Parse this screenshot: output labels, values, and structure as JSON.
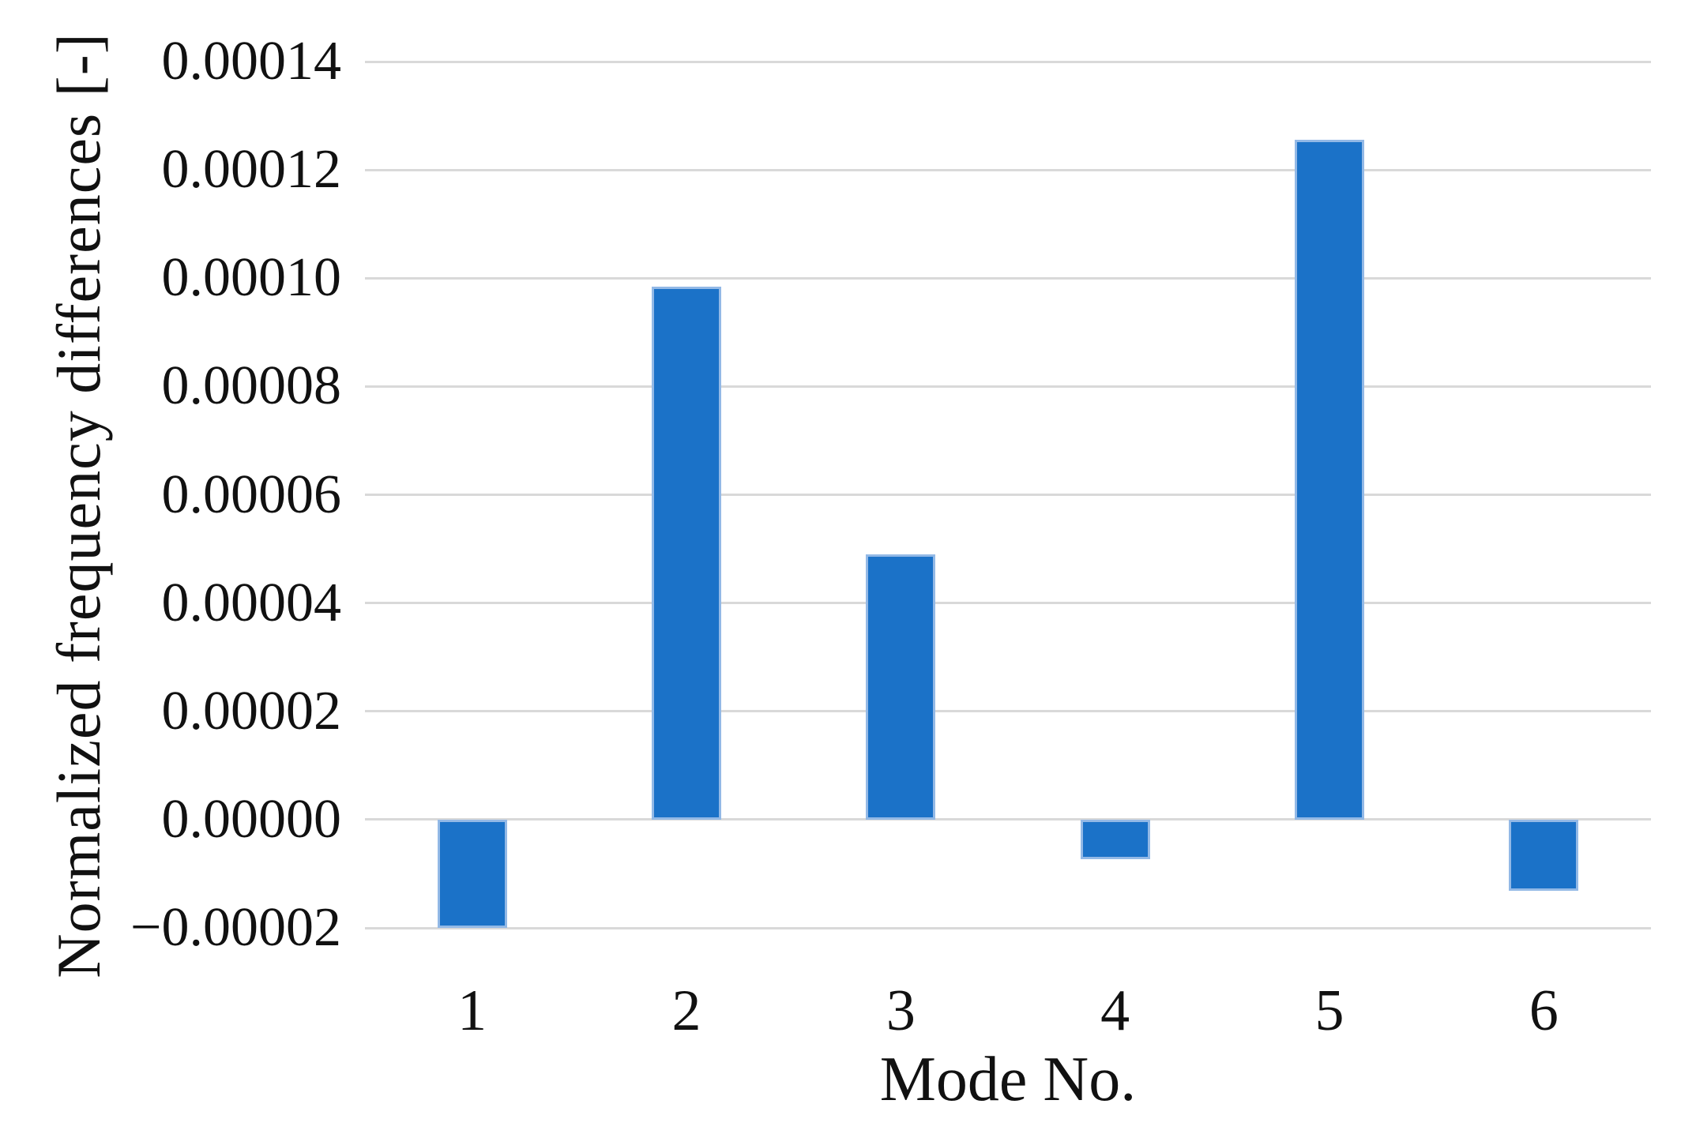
{
  "chart_data": {
    "type": "bar",
    "title": "",
    "xlabel": "Mode No.",
    "ylabel": "Normalized frequency differences [-]",
    "categories": [
      "1",
      "2",
      "3",
      "4",
      "5",
      "6"
    ],
    "values": [
      -2e-05,
      9.85e-05,
      4.9e-05,
      -7.3e-06,
      0.0001255,
      -1.31e-05
    ],
    "ylim": [
      -2e-05,
      0.00014
    ],
    "ytick_step": 2e-05,
    "yticks": [
      {
        "value": 0.00014,
        "label": "0.00014"
      },
      {
        "value": 0.00012,
        "label": "0.00012"
      },
      {
        "value": 0.0001,
        "label": "0.00010"
      },
      {
        "value": 8e-05,
        "label": "0.00008"
      },
      {
        "value": 6e-05,
        "label": "0.00006"
      },
      {
        "value": 4e-05,
        "label": "0.00004"
      },
      {
        "value": 2e-05,
        "label": "0.00002"
      },
      {
        "value": 0.0,
        "label": "0.00000"
      },
      {
        "value": -2e-05,
        "label": "−0.00002"
      }
    ],
    "grid": true,
    "legend": null,
    "bar_color": "#1b72c8",
    "bar_border_color": "#93b9e6",
    "gridline_color": "#d9d9d9",
    "text_color": "#111111",
    "background": "#ffffff",
    "bar_width_fraction": 0.325
  }
}
